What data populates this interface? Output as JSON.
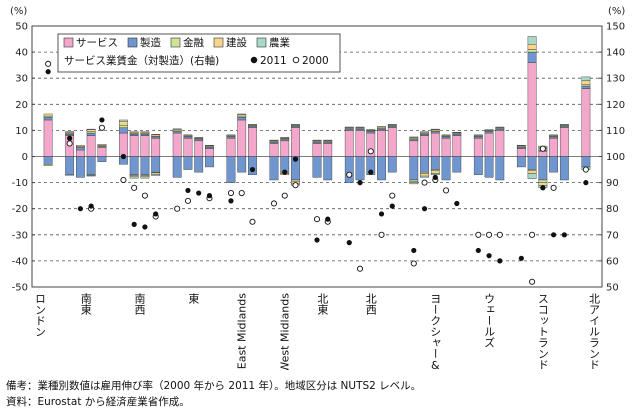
{
  "chart_data": {
    "type": "bar",
    "left_unit": "(%)",
    "right_unit": "(%)",
    "ylim": [
      -50,
      50
    ],
    "y2lim": [
      50,
      150
    ],
    "yticks": [
      50,
      40,
      30,
      20,
      10,
      0,
      -10,
      -20,
      -30,
      -40,
      -50
    ],
    "y2ticks": [
      150,
      140,
      130,
      120,
      110,
      100,
      90,
      80,
      70,
      60,
      50
    ],
    "legend_bars": [
      {
        "name": "サービス",
        "color": "#f2a7cb"
      },
      {
        "name": "製造",
        "color": "#6f96cf"
      },
      {
        "name": "金融",
        "color": "#cfe39a"
      },
      {
        "name": "建設",
        "color": "#f7d58e"
      },
      {
        "name": "農業",
        "color": "#a9d9c6"
      }
    ],
    "legend_dots_title": "サービス業賃金（対製造）(右軸)",
    "legend_dots": [
      {
        "name": "2011",
        "fill": "#111111"
      },
      {
        "name": "2000",
        "fill": "#ffffff"
      }
    ],
    "groups": [
      {
        "label": "ロンドン",
        "bars": [
          {
            "pos": [
              14,
              1,
              0.5,
              0.8,
              0
            ],
            "neg": [
              0,
              -3,
              -0.5,
              0,
              0
            ]
          }
        ],
        "w2011": [
          {
            "b": 0,
            "v": 132.5
          }
        ],
        "w2000": [
          {
            "b": 0,
            "v": 135.5
          }
        ]
      },
      {
        "label": "南東",
        "bars": [
          {
            "pos": [
              8,
              0.5,
              0.3,
              0.5,
              0.3
            ],
            "neg": [
              0,
              -7,
              0,
              0,
              -0.2
            ]
          },
          {
            "pos": [
              2.5,
              1,
              0.3,
              0.5,
              0
            ],
            "neg": [
              0,
              -8,
              0,
              0,
              0
            ]
          },
          {
            "pos": [
              8,
              1,
              0.5,
              0.8,
              0.2
            ],
            "neg": [
              0,
              -7,
              -0.3,
              0,
              -0.2
            ]
          },
          {
            "pos": [
              3.5,
              0.5,
              0.2,
              0.5,
              0
            ],
            "neg": [
              0,
              -2,
              0,
              0,
              0
            ]
          }
        ],
        "w2011": [
          {
            "b": 0,
            "v": 107
          },
          {
            "b": 1,
            "v": 80
          },
          {
            "b": 2,
            "v": 81
          },
          {
            "b": 3,
            "v": 114
          }
        ],
        "w2000": [
          {
            "b": 0,
            "v": 105
          },
          {
            "b": 2,
            "v": 80
          },
          {
            "b": 3,
            "v": 111
          }
        ]
      },
      {
        "label": "南西",
        "bars": [
          {
            "pos": [
              9,
              2,
              1,
              1.5,
              0.5
            ],
            "neg": [
              0,
              -3,
              0,
              0,
              0
            ]
          },
          {
            "pos": [
              8,
              0.5,
              0.3,
              0.5,
              0.2
            ],
            "neg": [
              0,
              -7,
              -0.3,
              -0.5,
              -0.5
            ]
          },
          {
            "pos": [
              8,
              0.5,
              0.3,
              0.5,
              0.2
            ],
            "neg": [
              0,
              -7,
              -0.3,
              -0.5,
              -0.5
            ]
          },
          {
            "pos": [
              7,
              0.5,
              0.3,
              0.5,
              0.2
            ],
            "neg": [
              0,
              -6,
              -0.3,
              -0.5,
              -0.5
            ]
          }
        ],
        "w2011": [
          {
            "b": 0,
            "v": 100
          },
          {
            "b": 1,
            "v": 74
          },
          {
            "b": 2,
            "v": 73
          },
          {
            "b": 3,
            "v": 78
          }
        ],
        "w2000": [
          {
            "b": 0,
            "v": 91
          },
          {
            "b": 1,
            "v": 88
          },
          {
            "b": 2,
            "v": 85
          },
          {
            "b": 3,
            "v": 77
          }
        ]
      },
      {
        "label": "東",
        "bars": [
          {
            "pos": [
              9,
              0.5,
              0.3,
              0.5,
              0.3
            ],
            "neg": [
              0,
              -8,
              0,
              0,
              0
            ]
          },
          {
            "pos": [
              7,
              0.5,
              0.3,
              0.3,
              0.2
            ],
            "neg": [
              0,
              -5,
              0,
              0,
              0
            ]
          },
          {
            "pos": [
              6,
              0.5,
              0.3,
              0.3,
              0.2
            ],
            "neg": [
              0,
              -6,
              0,
              0,
              0
            ]
          },
          {
            "pos": [
              3,
              0.5,
              0.3,
              0.3,
              0.2
            ],
            "neg": [
              0,
              -4,
              0,
              0,
              0
            ]
          }
        ],
        "w2011": [
          {
            "b": 1,
            "v": 87
          },
          {
            "b": 2,
            "v": 86
          },
          {
            "b": 3,
            "v": 85
          }
        ],
        "w2000": [
          {
            "b": 0,
            "v": 80
          },
          {
            "b": 1,
            "v": 83
          },
          {
            "b": 3,
            "v": 84
          }
        ]
      },
      {
        "label": "East Midlands",
        "bars": [
          {
            "pos": [
              7,
              0.5,
              0.3,
              0.3,
              0.2
            ],
            "neg": [
              0,
              -10,
              0,
              0,
              0
            ]
          },
          {
            "pos": [
              14,
              1,
              0.5,
              0.5,
              0.3
            ],
            "neg": [
              0,
              -6,
              0,
              0,
              0
            ]
          },
          {
            "pos": [
              11,
              0.5,
              0.3,
              0.3,
              0.2
            ],
            "neg": [
              0,
              -7,
              0,
              0,
              0
            ]
          }
        ],
        "w2011": [
          {
            "b": 0,
            "v": 83
          },
          {
            "b": 2,
            "v": 95
          }
        ],
        "w2000": [
          {
            "b": 0,
            "v": 86
          },
          {
            "b": 1,
            "v": 86
          },
          {
            "b": 2,
            "v": 75
          }
        ]
      },
      {
        "label": "West Midlands",
        "bars": [
          {
            "pos": [
              5,
              0.5,
              0.3,
              0.3,
              0.2
            ],
            "neg": [
              0,
              -9,
              0,
              0,
              0
            ]
          },
          {
            "pos": [
              6,
              0.5,
              0.3,
              0.3,
              0.2
            ],
            "neg": [
              0,
              -6,
              -0.5,
              -0.5,
              0
            ]
          },
          {
            "pos": [
              11,
              0.5,
              0.3,
              0.3,
              0.2
            ],
            "neg": [
              0,
              -9,
              -0.5,
              -1,
              -0.5
            ]
          }
        ],
        "w2011": [
          {
            "b": 1,
            "v": 94
          },
          {
            "b": 2,
            "v": 99
          }
        ],
        "w2000": [
          {
            "b": 0,
            "v": 82
          },
          {
            "b": 1,
            "v": 85
          },
          {
            "b": 2,
            "v": 89
          }
        ]
      },
      {
        "label": "北東",
        "bars": [
          {
            "pos": [
              5,
              0.5,
              0.3,
              0.3,
              0.2
            ],
            "neg": [
              0,
              -8,
              0,
              0,
              0
            ]
          },
          {
            "pos": [
              5,
              0.5,
              0.3,
              0.3,
              0.2
            ],
            "neg": [
              0,
              -9,
              0,
              0,
              0
            ]
          }
        ],
        "w2011": [
          {
            "b": 0,
            "v": 68
          },
          {
            "b": 1,
            "v": 76
          }
        ],
        "w2000": [
          {
            "b": 0,
            "v": 76
          },
          {
            "b": 1,
            "v": 75
          }
        ]
      },
      {
        "label": "北西",
        "bars": [
          {
            "pos": [
              10,
              0.5,
              0.3,
              0.3,
              0.2
            ],
            "neg": [
              0,
              -10,
              0,
              0,
              0
            ]
          },
          {
            "pos": [
              10,
              0.5,
              0.3,
              0.3,
              0.2
            ],
            "neg": [
              0,
              -9,
              0,
              0,
              0
            ]
          },
          {
            "pos": [
              9,
              0.5,
              0.3,
              0.3,
              0.3
            ],
            "neg": [
              0,
              -7,
              0,
              0,
              0
            ]
          },
          {
            "pos": [
              10,
              0.5,
              0.3,
              0.5,
              0.2
            ],
            "neg": [
              0,
              -9,
              0,
              0,
              0
            ]
          },
          {
            "pos": [
              11,
              0.5,
              0.3,
              0.3,
              0.2
            ],
            "neg": [
              0,
              -6,
              0,
              0,
              0
            ]
          }
        ],
        "w2011": [
          {
            "b": 0,
            "v": 67
          },
          {
            "b": 1,
            "v": 90
          },
          {
            "b": 2,
            "v": 94
          },
          {
            "b": 3,
            "v": 78
          },
          {
            "b": 4,
            "v": 81
          }
        ],
        "w2000": [
          {
            "b": 0,
            "v": 93
          },
          {
            "b": 1,
            "v": 57
          },
          {
            "b": 2,
            "v": 102
          },
          {
            "b": 3,
            "v": 70
          },
          {
            "b": 4,
            "v": 85
          }
        ]
      },
      {
        "label": "ヨークシャー&ハンバー",
        "bars": [
          {
            "pos": [
              6,
              0.5,
              0.3,
              0.5,
              0.2
            ],
            "neg": [
              0,
              -9,
              -0.5,
              -0.5,
              -0.5
            ]
          },
          {
            "pos": [
              8,
              0.5,
              0.3,
              0.5,
              0.2
            ],
            "neg": [
              0,
              -6,
              -0.5,
              -1,
              -0.5
            ]
          },
          {
            "pos": [
              9,
              0.5,
              0.3,
              0.5,
              0.2
            ],
            "neg": [
              0,
              -5,
              -0.5,
              -1,
              -0.5
            ]
          },
          {
            "pos": [
              7,
              0.5,
              0.3,
              0.3,
              0.2
            ],
            "neg": [
              0,
              -9,
              0,
              0,
              0
            ]
          },
          {
            "pos": [
              8,
              0.5,
              0.3,
              0.3,
              0.2
            ],
            "neg": [
              0,
              -6,
              0,
              0,
              0
            ]
          }
        ],
        "w2011": [
          {
            "b": 0,
            "v": 64
          },
          {
            "b": 1,
            "v": 80
          },
          {
            "b": 2,
            "v": 92
          },
          {
            "b": 4,
            "v": 82
          }
        ],
        "w2000": [
          {
            "b": 0,
            "v": 59
          },
          {
            "b": 1,
            "v": 90
          },
          {
            "b": 2,
            "v": 91
          },
          {
            "b": 3,
            "v": 87
          }
        ]
      },
      {
        "label": "ウェールズ",
        "bars": [
          {
            "pos": [
              7,
              0.5,
              0.3,
              0.3,
              0.2
            ],
            "neg": [
              0,
              -7,
              0,
              0,
              0
            ]
          },
          {
            "pos": [
              9,
              0.5,
              0.3,
              0.3,
              0.2
            ],
            "neg": [
              0,
              -8,
              0,
              0,
              0
            ]
          },
          {
            "pos": [
              10,
              0.5,
              0.3,
              0.3,
              0.2
            ],
            "neg": [
              0,
              -9,
              0,
              0,
              0
            ]
          }
        ],
        "w2011": [
          {
            "b": 0,
            "v": 64
          },
          {
            "b": 1,
            "v": 62
          },
          {
            "b": 2,
            "v": 60
          }
        ],
        "w2000": [
          {
            "b": 0,
            "v": 70
          },
          {
            "b": 1,
            "v": 70
          },
          {
            "b": 2,
            "v": 70
          }
        ]
      },
      {
        "label": "スコットランド",
        "bars": [
          {
            "pos": [
              3,
              0.5,
              0.3,
              0.3,
              0.2
            ],
            "neg": [
              0,
              -4,
              0,
              0,
              0
            ]
          },
          {
            "pos": [
              36,
              4,
              1,
              2,
              3
            ],
            "neg": [
              0,
              -5,
              -0.5,
              -1,
              -2
            ]
          },
          {
            "pos": [
              2,
              0.5,
              0.5,
              0.5,
              0.5
            ],
            "neg": [
              0,
              -9,
              -1,
              -1,
              -1
            ]
          },
          {
            "pos": [
              7,
              0.5,
              0.3,
              0.3,
              0.2
            ],
            "neg": [
              0,
              -6,
              0,
              0,
              0
            ]
          },
          {
            "pos": [
              11,
              0.5,
              0.3,
              0.3,
              0.2
            ],
            "neg": [
              0,
              -9,
              0,
              0,
              0
            ]
          }
        ],
        "w2011": [
          {
            "b": 0,
            "v": 61
          },
          {
            "b": 2,
            "v": 88
          },
          {
            "b": 3,
            "v": 70
          },
          {
            "b": 4,
            "v": 70
          }
        ],
        "w2000": [
          {
            "b": 1,
            "v": 70
          },
          {
            "b": 1,
            "v": 52
          },
          {
            "b": 2,
            "v": 103
          },
          {
            "b": 3,
            "v": 88
          }
        ]
      },
      {
        "label": "北アイルランド",
        "bars": [
          {
            "pos": [
              26,
              1,
              0.5,
              1.5,
              1.5
            ],
            "neg": [
              0,
              -4,
              0,
              0,
              -1
            ]
          }
        ],
        "w2011": [
          {
            "b": 0,
            "v": 90
          }
        ],
        "w2000": [
          {
            "b": 0,
            "v": 95
          }
        ]
      }
    ]
  },
  "notes": {
    "line1": "備考：業種別数値は雇用伸び率（2000 年から 2011 年）。地域区分は NUTS2 レベル。",
    "line2": "資料：Eurostat から経済産業省作成。"
  }
}
